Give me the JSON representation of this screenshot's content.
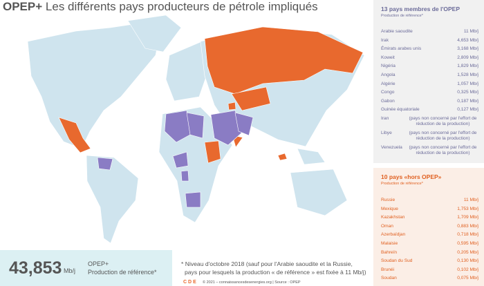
{
  "header": {
    "title_bold": "OPEP+",
    "title": "Les différents pays producteurs de pétrole impliqués"
  },
  "opec": {
    "title": "13 pays membres de l'OPEP",
    "subtitle": "Production de référence*",
    "rows": [
      [
        "Arabie saoudite",
        "11 Mb/j"
      ],
      [
        "Irak",
        "4,653 Mb/j"
      ],
      [
        "Émirats arabes unis",
        "3,168 Mb/j"
      ],
      [
        "Koweit",
        "2,809 Mb/j"
      ],
      [
        "Nigéria",
        "1,829 Mb/j"
      ],
      [
        "Angola",
        "1,528 Mb/j"
      ],
      [
        "Algérie",
        "1,057 Mb/j"
      ],
      [
        "Congo",
        "0,325 Mb/j"
      ],
      [
        "Gabon",
        "0,187 Mb/j"
      ],
      [
        "Guinée équatoriale",
        "0,127 Mb/j"
      ],
      [
        "Iran",
        "(pays non concerné par l'effort de réduction de la production)"
      ],
      [
        "Libye",
        "(pays non concerné par l'effort de réduction de la production)"
      ],
      [
        "Venezuela",
        "(pays non concerné par l'effort de réduction de la production)"
      ]
    ]
  },
  "non_opec": {
    "title": "10 pays «hors OPEP»",
    "subtitle": "Production de référence*",
    "rows": [
      [
        "Russie",
        "11 Mb/j"
      ],
      [
        "Mexique",
        "1,753 Mb/j"
      ],
      [
        "Kazakhstan",
        "1,709 Mb/j"
      ],
      [
        "Oman",
        "0,883 Mb/j"
      ],
      [
        "Azerbaïdjan",
        "0,718 Mb/j"
      ],
      [
        "Malaisie",
        "0,595 Mb/j"
      ],
      [
        "Bahreïn",
        "0,205 Mb/j"
      ],
      [
        "Soudan du Sud",
        "0,130 Mb/j"
      ],
      [
        "Brunéi",
        "0,102 Mb/j"
      ],
      [
        "Soudan",
        "0,075 Mb/j"
      ]
    ]
  },
  "total": {
    "value": "43,853",
    "unit": "Mb/j",
    "label": "OPEP+",
    "sublabel": "Production de référence*"
  },
  "footnote": [
    "* Niveau d'octobre 2018 (sauf pour l'Arabie saoudite et la Russie,",
    "pays pour lesquels la production « de référence » est fixée à 11 Mb/j)"
  ],
  "logo": "CDE",
  "credit": "© 2021 – connaissancesdesenergies.org | Source : OPEP"
}
